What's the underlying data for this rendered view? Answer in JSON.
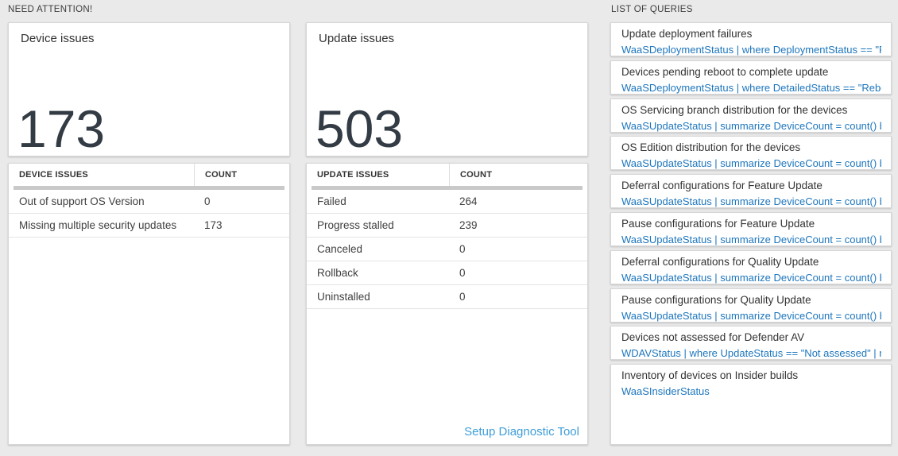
{
  "headers": {
    "need_attention": "NEED ATTENTION!",
    "list_of_queries": "LIST OF QUERIES"
  },
  "device_issues": {
    "label": "Device issues",
    "total": "173",
    "table_headers": [
      "DEVICE ISSUES",
      "COUNT"
    ],
    "rows": [
      [
        "Out of support OS Version",
        "0"
      ],
      [
        "Missing multiple security updates",
        "173"
      ]
    ]
  },
  "update_issues": {
    "label": "Update issues",
    "total": "503",
    "table_headers": [
      "UPDATE ISSUES",
      "COUNT"
    ],
    "rows": [
      [
        "Failed",
        "264"
      ],
      [
        "Progress stalled",
        "239"
      ],
      [
        "Canceled",
        "0"
      ],
      [
        "Rollback",
        "0"
      ],
      [
        "Uninstalled",
        "0"
      ]
    ],
    "diagnostic_link": "Setup Diagnostic Tool"
  },
  "query_list": [
    {
      "title": "Update deployment failures",
      "query": "WaaSDeploymentStatus | where DeploymentStatus == \"Failed\" |..."
    },
    {
      "title": "Devices pending reboot to complete update",
      "query": "WaaSDeploymentStatus | where DetailedStatus == \"Reboot pend..."
    },
    {
      "title": "OS Servicing branch distribution for the devices",
      "query": "WaaSUpdateStatus | summarize DeviceCount = count() by OSSer..."
    },
    {
      "title": "OS Edition distribution for the devices",
      "query": "WaaSUpdateStatus | summarize DeviceCount = count() by OSEdit..."
    },
    {
      "title": "Deferral configurations for Feature Update",
      "query": "WaaSUpdateStatus | summarize DeviceCount = count() by Featur..."
    },
    {
      "title": "Pause configurations for Feature Update",
      "query": "WaaSUpdateStatus | summarize DeviceCount = count() by Featur..."
    },
    {
      "title": "Deferral configurations for Quality Update",
      "query": "WaaSUpdateStatus | summarize DeviceCount = count() by Qualit..."
    },
    {
      "title": "Pause configurations for Quality Update",
      "query": "WaaSUpdateStatus | summarize DeviceCount = count() by Qualit..."
    },
    {
      "title": "Devices not assessed for Defender AV",
      "query": "WDAVStatus | where UpdateStatus == \"Not assessed\" | render ta..."
    },
    {
      "title": "Inventory of devices on Insider builds",
      "query": "WaaSInsiderStatus"
    }
  ],
  "colors": {
    "query_link_blue": "#1d76bd",
    "diag_link_blue": "#3f9ed8",
    "big_number": "#333b44",
    "grid_bar_gray": "#c9c9c9",
    "page_background": "#eaeaea"
  }
}
